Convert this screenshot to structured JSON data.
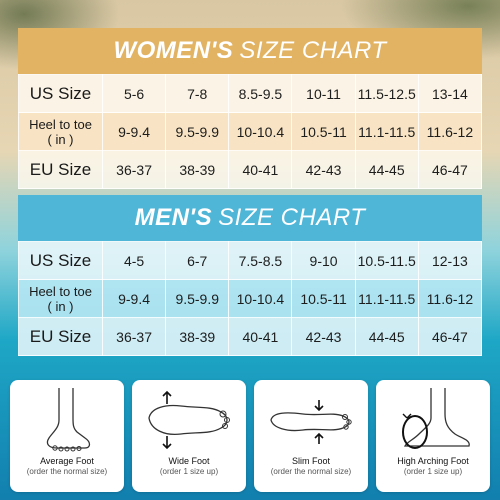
{
  "women": {
    "title_bold": "WOMEN'S",
    "title_thin": "SIZE CHART",
    "rows": [
      {
        "label": "US Size",
        "values": [
          "5-6",
          "7-8",
          "8.5-9.5",
          "10-11",
          "11.5-12.5",
          "13-14"
        ]
      },
      {
        "label": "Heel to toe\n( in )",
        "values": [
          "9-9.4",
          "9.5-9.9",
          "10-10.4",
          "10.5-11",
          "11.1-11.5",
          "11.6-12"
        ]
      },
      {
        "label": "EU Size",
        "values": [
          "36-37",
          "38-39",
          "40-41",
          "42-43",
          "44-45",
          "46-47"
        ]
      }
    ]
  },
  "men": {
    "title_bold": "MEN'S",
    "title_thin": "SIZE CHART",
    "rows": [
      {
        "label": "US Size",
        "values": [
          "4-5",
          "6-7",
          "7.5-8.5",
          "9-10",
          "10.5-11.5",
          "12-13"
        ]
      },
      {
        "label": "Heel to toe\n( in )",
        "values": [
          "9-9.4",
          "9.5-9.9",
          "10-10.4",
          "10.5-11",
          "11.1-11.5",
          "11.6-12"
        ]
      },
      {
        "label": "EU Size",
        "values": [
          "36-37",
          "38-39",
          "40-41",
          "42-43",
          "44-45",
          "46-47"
        ]
      }
    ]
  },
  "feet": [
    {
      "name": "Average Foot",
      "note": "(order the normal size)",
      "icon": "average-foot-icon"
    },
    {
      "name": "Wide Foot",
      "note": "(order 1 size up)",
      "icon": "wide-foot-icon"
    },
    {
      "name": "Slim Foot",
      "note": "(order the normal size)",
      "icon": "slim-foot-icon"
    },
    {
      "name": "High Arching Foot",
      "note": "(order 1 size up)",
      "icon": "high-arch-foot-icon"
    }
  ]
}
